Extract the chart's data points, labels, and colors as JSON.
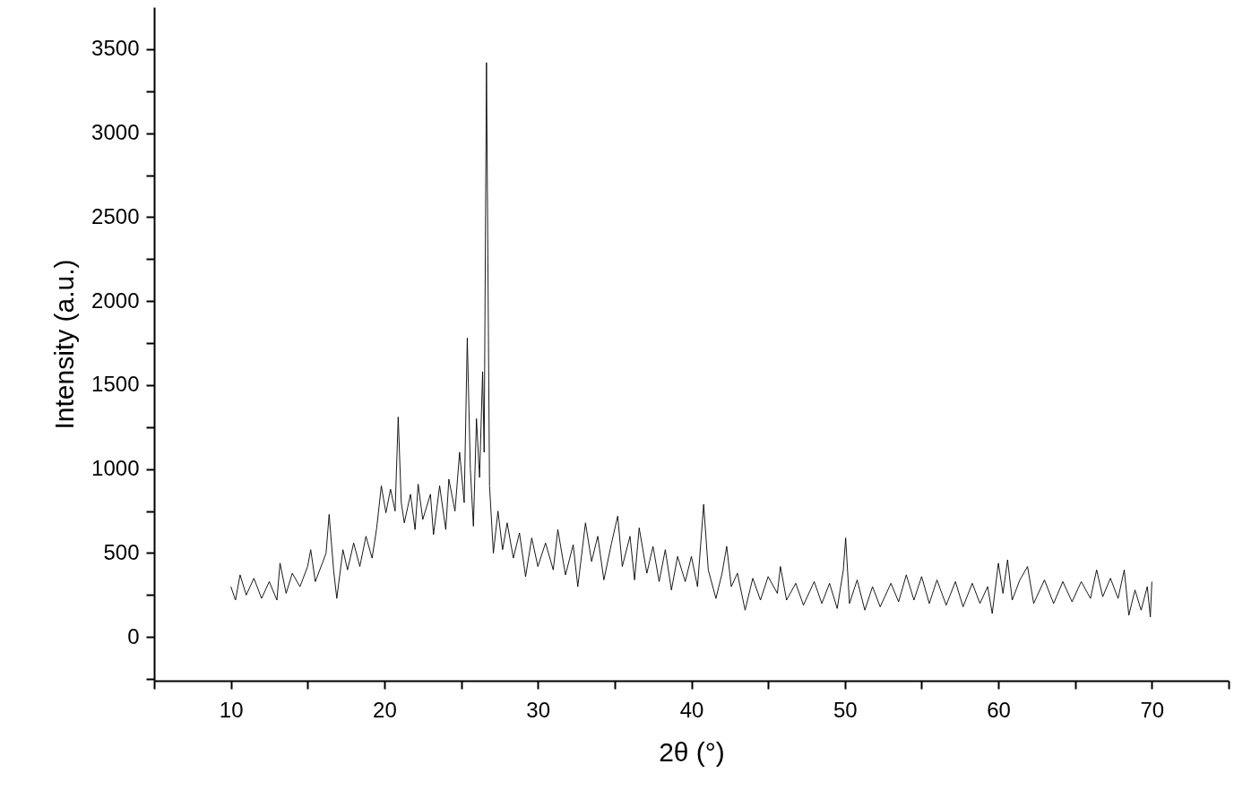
{
  "chart_data": {
    "type": "line",
    "xlabel": "2θ (°)",
    "ylabel": "Intensity (a.u.)",
    "x": [
      10.0,
      10.3,
      10.6,
      11,
      11.5,
      12,
      12.5,
      13,
      13.2,
      13.6,
      14,
      14.5,
      15,
      15.2,
      15.5,
      16,
      16.2,
      16.4,
      16.7,
      16.9,
      17.3,
      17.6,
      18,
      18.4,
      18.8,
      19.2,
      19.5,
      19.8,
      20.1,
      20.4,
      20.7,
      20.9,
      21.1,
      21.3,
      21.7,
      22,
      22.2,
      22.5,
      23,
      23.2,
      23.6,
      24,
      24.2,
      24.6,
      24.9,
      25.2,
      25.4,
      25.6,
      25.8,
      26,
      26.2,
      26.4,
      26.5,
      26.65,
      26.85,
      27.1,
      27.4,
      27.7,
      28,
      28.4,
      28.8,
      29.2,
      29.6,
      30,
      30.5,
      31,
      31.3,
      31.8,
      32.3,
      32.6,
      33.1,
      33.5,
      33.9,
      34.3,
      34.8,
      35.2,
      35.5,
      36,
      36.3,
      36.6,
      37.1,
      37.5,
      37.9,
      38.3,
      38.7,
      39.1,
      39.6,
      40,
      40.4,
      40.8,
      41.1,
      41.6,
      42,
      42.3,
      42.6,
      43,
      43.5,
      44,
      44.5,
      45,
      45.6,
      45.8,
      46.2,
      46.8,
      47.3,
      48,
      48.5,
      49,
      49.5,
      49.9,
      50.05,
      50.3,
      50.8,
      51.3,
      51.8,
      52.3,
      53,
      53.5,
      54,
      54.5,
      55,
      55.5,
      56,
      56.6,
      57.2,
      57.7,
      58.3,
      58.8,
      59.3,
      59.6,
      60,
      60.3,
      60.6,
      60.9,
      61.4,
      61.9,
      62.3,
      63,
      63.6,
      64.2,
      64.8,
      65.4,
      66,
      66.4,
      66.8,
      67.3,
      67.8,
      68.2,
      68.5,
      68.9,
      69.3,
      69.7,
      69.9,
      70
    ],
    "series": [
      {
        "color": "#000000",
        "values": [
          300,
          220,
          370,
          250,
          350,
          230,
          330,
          220,
          440,
          260,
          380,
          300,
          420,
          520,
          330,
          450,
          500,
          730,
          390,
          230,
          520,
          400,
          560,
          420,
          600,
          470,
          650,
          900,
          740,
          880,
          750,
          1310,
          800,
          680,
          850,
          640,
          910,
          700,
          850,
          610,
          900,
          640,
          940,
          750,
          1100,
          800,
          1780,
          1000,
          660,
          1300,
          950,
          1580,
          1100,
          3420,
          900,
          500,
          750,
          520,
          680,
          470,
          620,
          360,
          590,
          420,
          560,
          400,
          640,
          370,
          550,
          300,
          680,
          450,
          600,
          340,
          560,
          720,
          420,
          600,
          340,
          650,
          380,
          540,
          330,
          520,
          280,
          480,
          330,
          480,
          300,
          790,
          400,
          230,
          380,
          540,
          300,
          380,
          160,
          350,
          220,
          360,
          260,
          420,
          220,
          320,
          190,
          330,
          200,
          320,
          170,
          400,
          590,
          200,
          340,
          160,
          300,
          180,
          320,
          210,
          370,
          220,
          360,
          200,
          340,
          190,
          330,
          180,
          320,
          200,
          300,
          140,
          440,
          260,
          460,
          220,
          340,
          420,
          200,
          340,
          200,
          330,
          210,
          330,
          230,
          400,
          240,
          350,
          230,
          400,
          130,
          280,
          160,
          300,
          120,
          330
        ]
      }
    ],
    "xlim": [
      5,
      75
    ],
    "xticks": [
      {
        "value": 5,
        "label": null
      },
      10,
      {
        "value": 15,
        "label": null
      },
      20,
      {
        "value": 25,
        "label": null
      },
      30,
      {
        "value": 35,
        "label": null
      },
      40,
      {
        "value": 45,
        "label": null
      },
      50,
      {
        "value": 55,
        "label": null
      },
      60,
      {
        "value": 65,
        "label": null
      },
      70,
      {
        "value": 75,
        "label": null
      }
    ],
    "ylim": [
      -260,
      3750
    ],
    "yticks": [
      {
        "value": -250,
        "label": null
      },
      0,
      {
        "value": 250,
        "label": null
      },
      500,
      {
        "value": 750,
        "label": null
      },
      1000,
      {
        "value": 1250,
        "label": null
      },
      1500,
      {
        "value": 1750,
        "label": null
      },
      2000,
      {
        "value": 2250,
        "label": null
      },
      2500,
      {
        "value": 2750,
        "label": null
      },
      3000,
      {
        "value": 3250,
        "label": null
      },
      3500
    ],
    "grid": false,
    "marker": "none",
    "line_style": "solid"
  }
}
